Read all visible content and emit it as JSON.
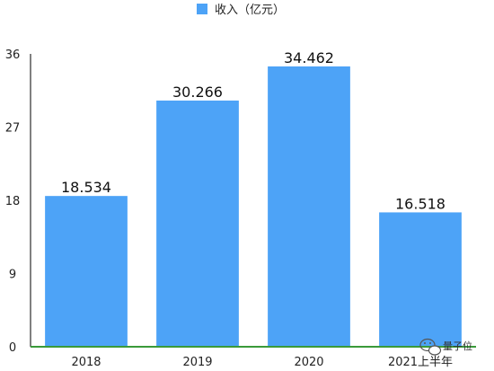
{
  "chart_data": {
    "type": "bar",
    "categories": [
      "2018",
      "2019",
      "2020",
      "2021上半年"
    ],
    "series": [
      {
        "name": "收入（亿元）",
        "values": [
          18.534,
          30.266,
          34.462,
          16.518
        ]
      }
    ],
    "data_labels": [
      "18.534",
      "30.266",
      "34.462",
      "16.518"
    ],
    "y_ticks": [
      "0",
      "9",
      "18",
      "27",
      "36"
    ],
    "ylim": [
      0,
      36
    ],
    "grid": false,
    "legend": "top-center",
    "bar_color": "#4da3f7",
    "axis_color": "#3a9a3a"
  },
  "watermark": {
    "text": "量子位",
    "icon": "wechat-icon"
  }
}
